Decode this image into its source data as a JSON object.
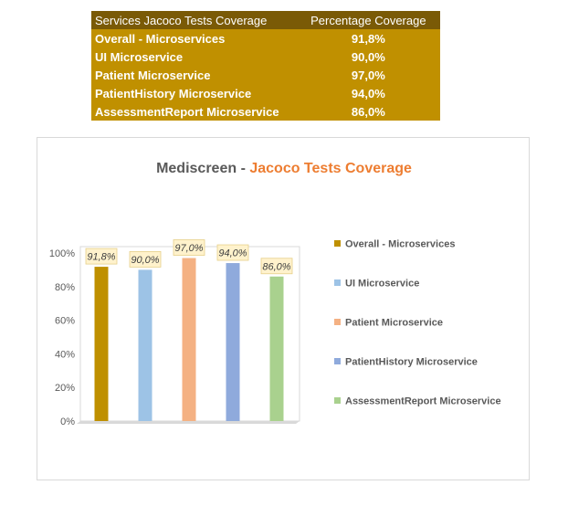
{
  "table": {
    "header": {
      "service": "Services Jacoco Tests Coverage",
      "coverage": "Percentage Coverage"
    },
    "rows": [
      {
        "service": "Overall  - Microservices",
        "coverage": "91,8%"
      },
      {
        "service": "UI Microservice",
        "coverage": "90,0%"
      },
      {
        "service": "Patient Microservice",
        "coverage": "97,0%"
      },
      {
        "service": "PatientHistory Microservice",
        "coverage": "94,0%"
      },
      {
        "service": "AssessmentReport Microservice",
        "coverage": "86,0%"
      }
    ]
  },
  "chart_data": {
    "type": "bar",
    "title_part1": "Mediscreen - ",
    "title_part2": "Jacoco Tests Coverage",
    "ylim": [
      0,
      100
    ],
    "yticks": [
      "0%",
      "20%",
      "40%",
      "60%",
      "80%",
      "100%"
    ],
    "grid": false,
    "legend_position": "right",
    "series": [
      {
        "name": "Overall  - Microservices",
        "value": 91.8,
        "label": "91,8%",
        "color": "#bf9000"
      },
      {
        "name": "UI Microservice",
        "value": 90.0,
        "label": "90,0%",
        "color": "#9dc3e6"
      },
      {
        "name": "Patient Microservice",
        "value": 97.0,
        "label": "97,0%",
        "color": "#f4b183"
      },
      {
        "name": "PatientHistory Microservice",
        "value": 94.0,
        "label": "94,0%",
        "color": "#8faadc"
      },
      {
        "name": "AssessmentReport Microservice",
        "value": 86.0,
        "label": "86,0%",
        "color": "#a9d18e"
      }
    ],
    "label_bg": "#fff2cc"
  }
}
